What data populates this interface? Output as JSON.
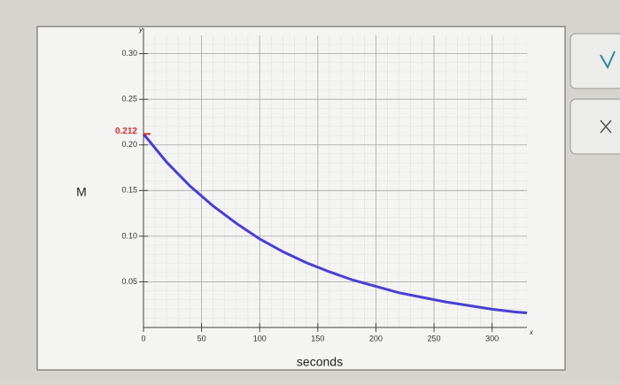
{
  "chart_data": {
    "type": "line",
    "x_label": "seconds",
    "y_label": "M",
    "x_axis_name": "x",
    "y_axis_name": "y",
    "annotation": {
      "label": "0.212",
      "value": 0.212,
      "color": "#d62a2a"
    },
    "x": [
      0,
      20,
      40,
      60,
      80,
      100,
      120,
      140,
      160,
      180,
      200,
      220,
      240,
      260,
      280,
      300,
      320,
      330
    ],
    "series": [
      {
        "name": "M",
        "color": "#4a3fd1",
        "values": [
          0.212,
          0.181,
          0.155,
          0.133,
          0.114,
          0.097,
          0.083,
          0.071,
          0.061,
          0.052,
          0.045,
          0.038,
          0.033,
          0.028,
          0.024,
          0.02,
          0.017,
          0.016
        ]
      }
    ],
    "xlim": [
      0,
      330
    ],
    "ylim": [
      0,
      0.32
    ],
    "xticks": [
      0,
      50,
      100,
      150,
      200,
      250,
      300
    ],
    "yticks": [
      {
        "value": 0.05,
        "label": "0.05"
      },
      {
        "value": 0.1,
        "label": "0.10"
      },
      0.15,
      {
        "value": 0.2,
        "label": "0.20"
      },
      0.25,
      {
        "value": 0.3,
        "label": "0.30"
      }
    ],
    "grid": true
  }
}
